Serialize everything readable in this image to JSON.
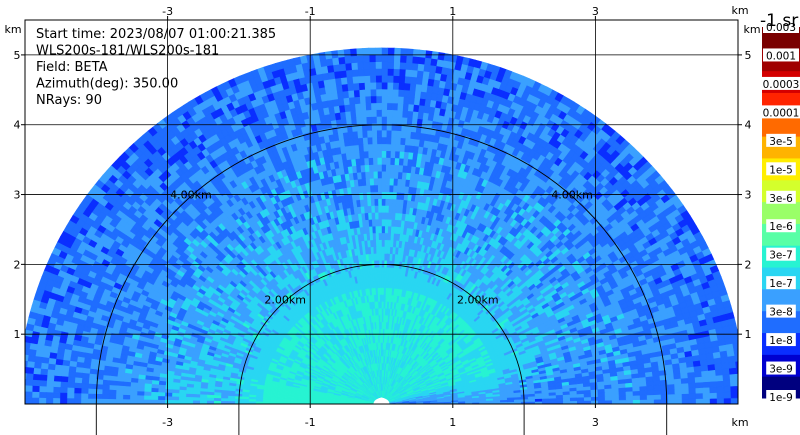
{
  "chart_data": {
    "type": "heatmap",
    "subtype": "radar-rhi-ppi-sector",
    "info_lines": [
      "Start time: 2023/08/07 01:00:21.385",
      "WLS200s-181/WLS200s-181",
      "Field: BETA",
      "Azimuth(deg): 350.00",
      "NRays: 90"
    ],
    "x_unit": "km",
    "y_unit": "km",
    "xlim": [
      -5,
      5
    ],
    "ylim": [
      0,
      5.5
    ],
    "x_ticks": [
      -3,
      -1,
      1,
      3
    ],
    "y_ticks": [
      1,
      2,
      3,
      4,
      5
    ],
    "grid": true,
    "range_rings": [
      {
        "radius_km": 2,
        "label": "2.00km"
      },
      {
        "radius_km": 4,
        "label": "4.00km"
      }
    ],
    "max_range_km": 5.1,
    "colorbar": {
      "title": "-1 sr",
      "colors": [
        "#00007f",
        "#0000d0",
        "#0a2eff",
        "#1f6dff",
        "#3aa0ff",
        "#29d6f2",
        "#27f3d2",
        "#58ffa6",
        "#9aff68",
        "#d4ff2c",
        "#ffee00",
        "#ffb300",
        "#ff6a00",
        "#ff2400",
        "#d40000",
        "#a00000",
        "#7a0000"
      ],
      "tick_labels": [
        "1e-9",
        "3e-9",
        "1e-8",
        "3e-8",
        "1e-7",
        "3e-7",
        "1e-6",
        "3e-6",
        "1e-5",
        "3e-5",
        "0.0001",
        "0.0003",
        "0.001",
        "0.003"
      ]
    }
  }
}
